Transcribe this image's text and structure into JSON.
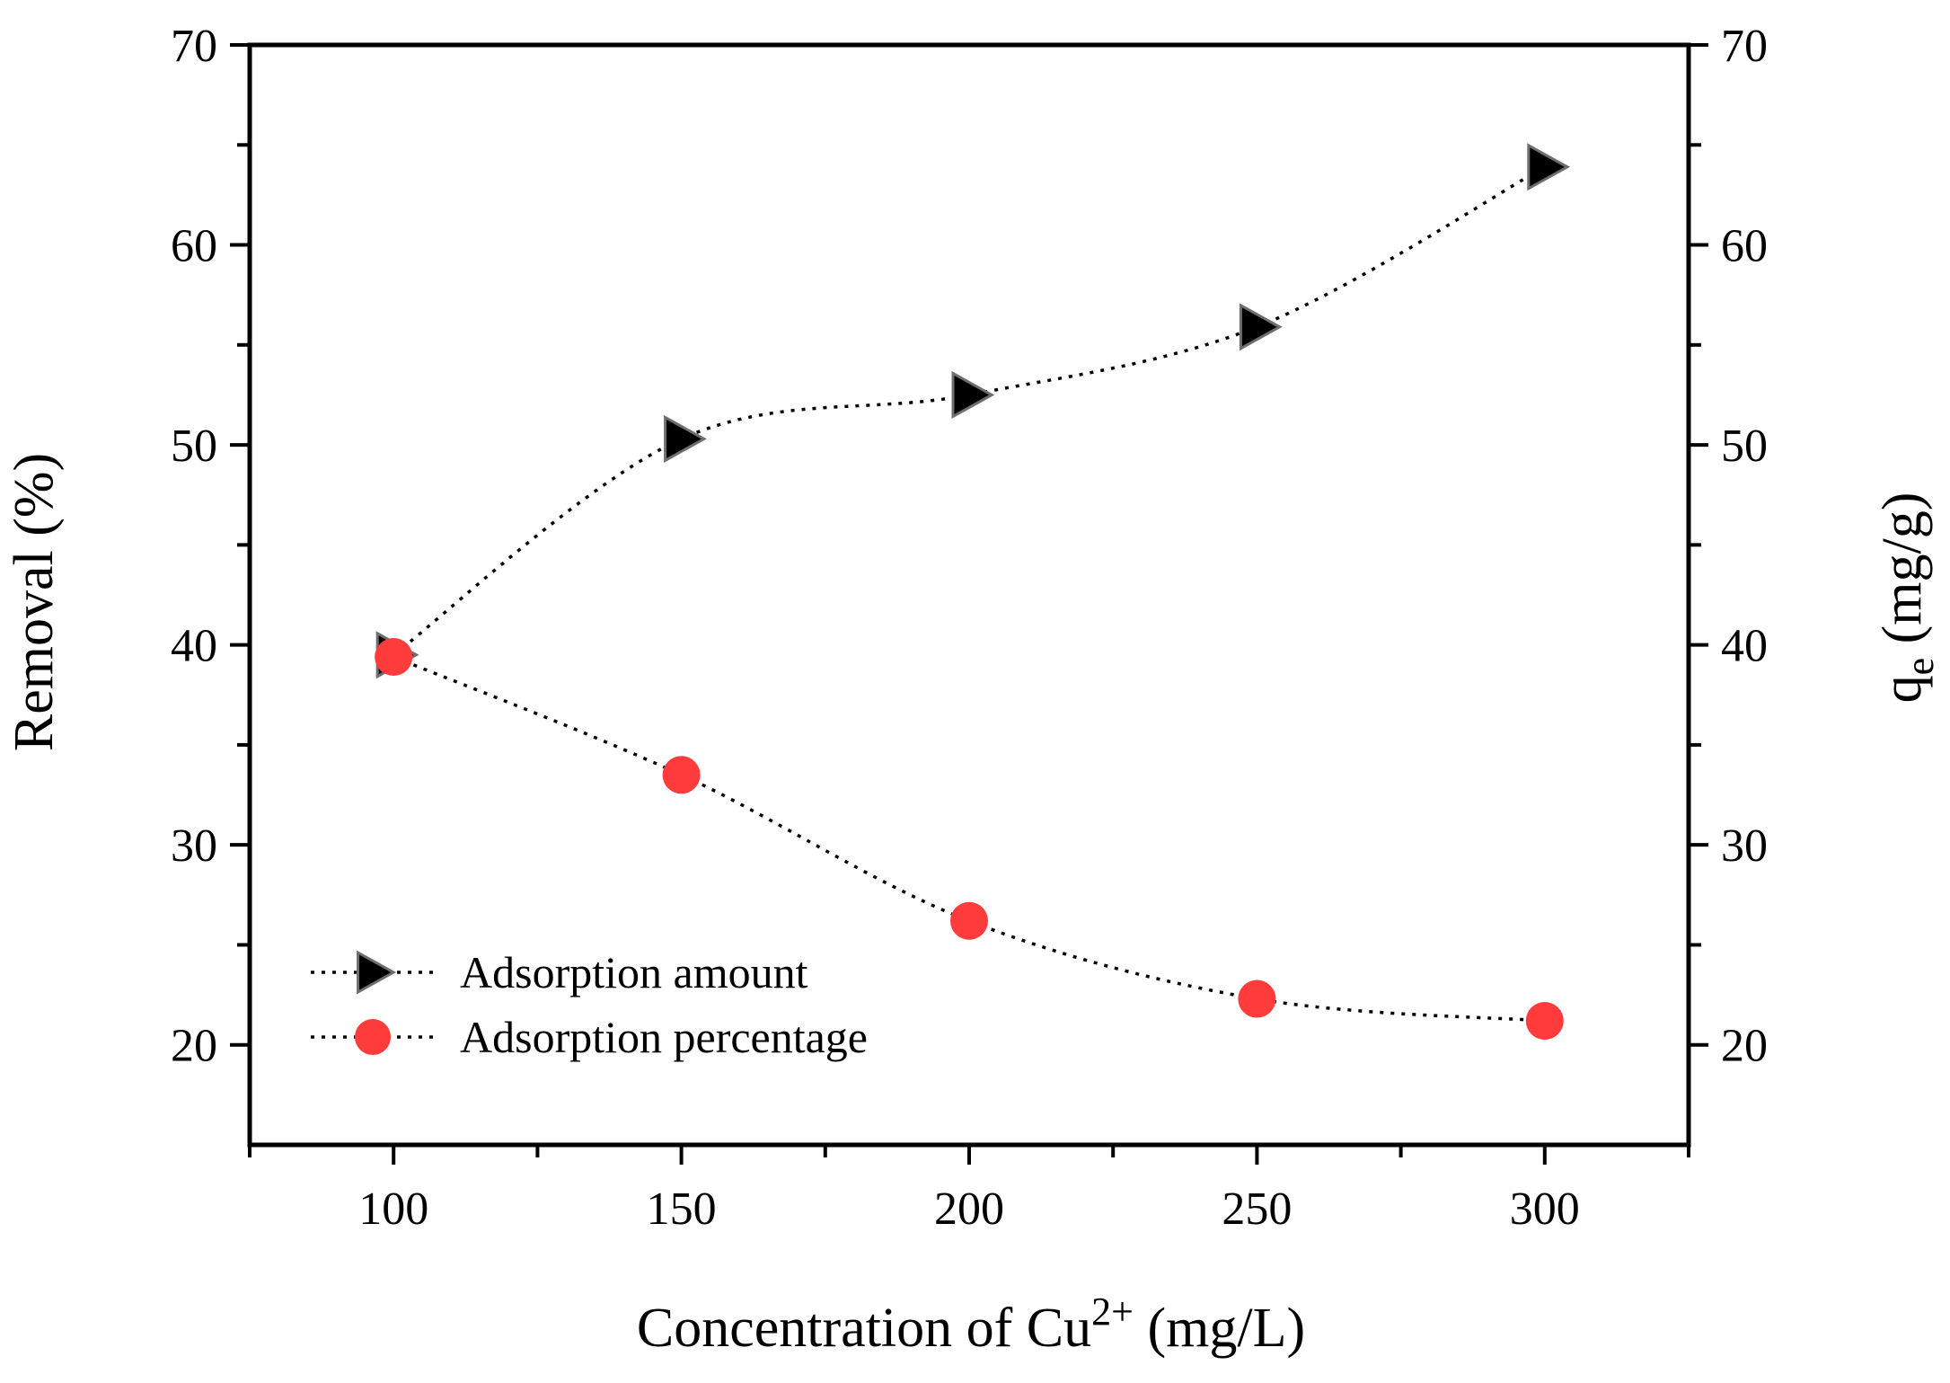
{
  "chart_data": {
    "type": "line",
    "title": "",
    "xlabel": {
      "main": "Concentration of Cu",
      "superscript": "2+",
      "unit": " (mg/L)"
    },
    "ylabel": "Removal (%)",
    "y2label": {
      "main": "q",
      "subscript": "e",
      "unit": " (mg/g)"
    },
    "xlim": [
      75,
      325
    ],
    "ylim": [
      15,
      70
    ],
    "y2lim": [
      15,
      70
    ],
    "x_ticks": [
      100,
      150,
      200,
      250,
      300
    ],
    "x_tick_labels": [
      "100",
      "150",
      "200",
      "250",
      "300"
    ],
    "y_ticks": [
      20,
      30,
      40,
      50,
      60,
      70
    ],
    "y_tick_labels": [
      "20",
      "30",
      "40",
      "50",
      "60",
      "70"
    ],
    "y2_ticks": [
      20,
      30,
      40,
      50,
      60,
      70
    ],
    "y2_tick_labels": [
      "20",
      "30",
      "40",
      "50",
      "60",
      "70"
    ],
    "grid": false,
    "legend_position": "bottom-left",
    "series": [
      {
        "name": "Adsorption amount",
        "axis": "right",
        "marker": "triangle-right",
        "color": "#000000",
        "line_style": "dotted",
        "x": [
          100,
          150,
          200,
          250,
          300
        ],
        "values": [
          39.5,
          50.3,
          52.5,
          55.9,
          63.9
        ]
      },
      {
        "name": "Adsorption percentage",
        "axis": "left",
        "marker": "circle",
        "color": "#ff3b3b",
        "line_style": "dotted",
        "x": [
          100,
          150,
          200,
          250,
          300
        ],
        "values": [
          39.4,
          33.5,
          26.2,
          22.3,
          21.2
        ]
      }
    ]
  }
}
